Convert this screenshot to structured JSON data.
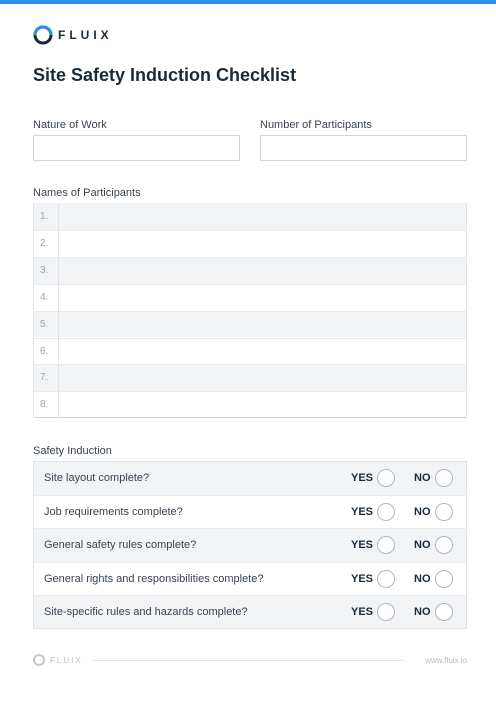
{
  "header": {
    "brand": "FLUIX",
    "title": "Site Safety Induction Checklist"
  },
  "fields": [
    {
      "label": "Nature of Work"
    },
    {
      "label": "Number of Participants"
    }
  ],
  "participants": {
    "label": "Names of Participants",
    "rows": [
      "1.",
      "2.",
      "3.",
      "4.",
      "5.",
      "6.",
      "7.",
      "8."
    ]
  },
  "induction": {
    "label": "Safety Induction",
    "yes_label": "YES",
    "no_label": "NO",
    "questions": [
      "Site layout complete?",
      "Job requirements complete?",
      "General safety rules complete?",
      "General rights and responsibilities complete?",
      "Site-specific rules and hazards complete?"
    ]
  },
  "footer": {
    "brand": "FLUIX",
    "url": "www.fluix.io"
  }
}
